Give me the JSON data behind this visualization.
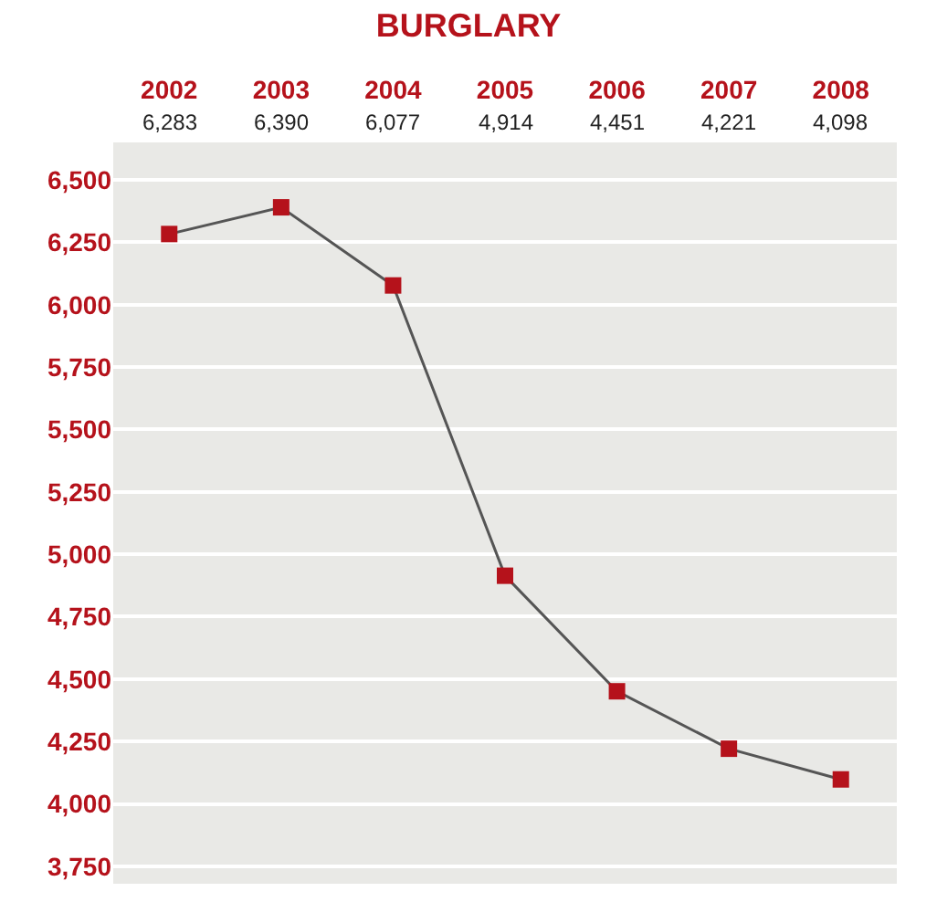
{
  "chart_data": {
    "type": "line",
    "title": "BURGLARY",
    "categories": [
      "2002",
      "2003",
      "2004",
      "2005",
      "2006",
      "2007",
      "2008"
    ],
    "series": [
      {
        "color": "#b5121b",
        "values": [
          6283,
          6390,
          6077,
          4914,
          4451,
          4221,
          4098
        ]
      }
    ],
    "ylim": [
      3680,
      6650
    ],
    "yticks": [
      {
        "value": 3750,
        "label": "3,750"
      },
      {
        "value": 4000,
        "label": "4,000"
      },
      {
        "value": 4250,
        "label": "4,250"
      },
      {
        "value": 4500,
        "label": "4,500"
      },
      {
        "value": 4750,
        "label": "4,750"
      },
      {
        "value": 5000,
        "label": "5,000"
      },
      {
        "value": 5250,
        "label": "5,250"
      },
      {
        "value": 5500,
        "label": "5,500"
      },
      {
        "value": 5750,
        "label": "5,750"
      },
      {
        "value": 6000,
        "label": "6,000"
      },
      {
        "value": 6250,
        "label": "6,250"
      },
      {
        "value": 6500,
        "label": "6,500"
      }
    ],
    "value_labels": [
      "6,283",
      "6,390",
      "6,077",
      "4,914",
      "4,451",
      "4,221",
      "4,098"
    ],
    "grid": "y",
    "marker": "square",
    "line_style": "solid",
    "legend": false
  }
}
